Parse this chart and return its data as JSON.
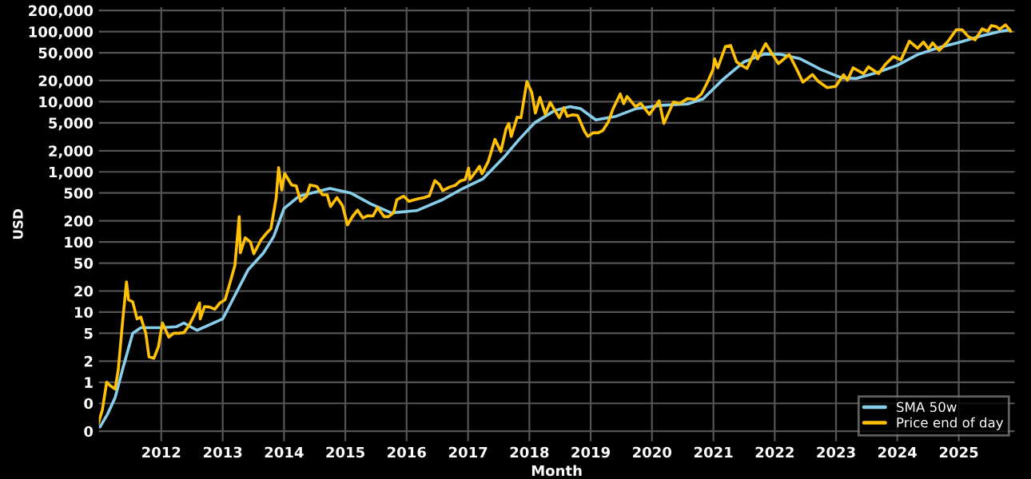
{
  "chart_data": {
    "type": "line",
    "xlabel": "Month",
    "ylabel": "USD",
    "log": "y",
    "grid": true,
    "legend": "bottom right",
    "marker": "none",
    "line_style": "solid",
    "xlim": [
      "2010-12-20",
      "2025-12-05"
    ],
    "xticks": [
      "2012",
      "2013",
      "2014",
      "2015",
      "2016",
      "2017",
      "2018",
      "2019",
      "2020",
      "2021",
      "2022",
      "2023",
      "2024",
      "2025"
    ],
    "ylim": [
      0.14,
      230000
    ],
    "yticks": [
      {
        "value": 0.2,
        "label": "0"
      },
      {
        "value": 0.5,
        "label": "0"
      },
      1,
      2,
      5,
      10,
      20,
      50,
      100,
      200,
      500,
      {
        "value": 1000,
        "label": "1,000"
      },
      {
        "value": 2000,
        "label": "2,000"
      },
      {
        "value": 5000,
        "label": "5,000"
      },
      {
        "value": 10000,
        "label": "10,000"
      },
      {
        "value": 20000,
        "label": "20,000"
      },
      {
        "value": 50000,
        "label": "50,000"
      },
      {
        "value": 100000,
        "label": "100,000"
      },
      {
        "value": 200000,
        "label": "200,000"
      }
    ],
    "series": [
      {
        "name": "SMA 50w",
        "color": "#87ceeb",
        "x": [
          "2011-01-01",
          "2011-02-15",
          "2011-04-01",
          "2011-05-15",
          "2011-07-15",
          "2011-09-01",
          "2012-01-01",
          "2012-04-01",
          "2012-05-15",
          "2012-08-01",
          "2013-01-01",
          "2013-03-01",
          "2013-06-01",
          "2013-09-01",
          "2013-11-01",
          "2014-01-01",
          "2014-04-01",
          "2014-10-01",
          "2015-02-01",
          "2015-06-01",
          "2015-10-01",
          "2016-03-01",
          "2016-08-01",
          "2016-12-01",
          "2017-04-01",
          "2017-08-01",
          "2017-11-01",
          "2018-02-01",
          "2018-06-01",
          "2018-09-01",
          "2018-11-01",
          "2019-02-01",
          "2019-06-01",
          "2019-10-01",
          "2020-03-01",
          "2020-08-01",
          "2020-11-01",
          "2021-03-01",
          "2021-07-01",
          "2021-11-01",
          "2022-02-01",
          "2022-06-01",
          "2022-10-01",
          "2023-02-01",
          "2023-05-01",
          "2023-09-01",
          "2024-01-01",
          "2024-05-01",
          "2024-09-01",
          "2025-01-01",
          "2025-05-01",
          "2025-09-01",
          "2025-11-01"
        ],
        "values": [
          0.23,
          0.35,
          0.6,
          1.5,
          5,
          6,
          6,
          6.2,
          7,
          5.5,
          8,
          15,
          40,
          70,
          120,
          300,
          450,
          580,
          500,
          350,
          260,
          280,
          400,
          580,
          800,
          1600,
          2900,
          5000,
          7500,
          8500,
          8000,
          5500,
          6200,
          8000,
          8900,
          9300,
          11000,
          21000,
          37000,
          48000,
          47500,
          41000,
          29000,
          22000,
          21500,
          26000,
          33000,
          47000,
          59000,
          70000,
          85000,
          100000,
          106000
        ]
      },
      {
        "name": "Price end of day",
        "color": "#ffc107",
        "x": [
          "2010-12-20",
          "2011-01-15",
          "2011-02-10",
          "2011-03-01",
          "2011-04-01",
          "2011-04-20",
          "2011-05-15",
          "2011-06-08",
          "2011-06-20",
          "2011-07-15",
          "2011-08-10",
          "2011-09-01",
          "2011-10-01",
          "2011-10-20",
          "2011-11-18",
          "2011-12-15",
          "2012-01-08",
          "2012-02-15",
          "2012-03-15",
          "2012-04-15",
          "2012-05-15",
          "2012-06-15",
          "2012-07-15",
          "2012-08-16",
          "2012-08-20",
          "2012-09-15",
          "2012-10-15",
          "2012-11-15",
          "2012-12-15",
          "2013-01-15",
          "2013-02-15",
          "2013-03-15",
          "2013-04-09",
          "2013-04-16",
          "2013-05-15",
          "2013-06-15",
          "2013-07-05",
          "2013-08-15",
          "2013-09-15",
          "2013-10-15",
          "2013-11-15",
          "2013-11-30",
          "2013-12-18",
          "2014-01-05",
          "2014-02-15",
          "2014-03-15",
          "2014-04-10",
          "2014-05-15",
          "2014-06-05",
          "2014-07-15",
          "2014-08-18",
          "2014-09-15",
          "2014-10-05",
          "2014-11-12",
          "2014-12-15",
          "2015-01-14",
          "2015-02-15",
          "2015-03-15",
          "2015-04-15",
          "2015-05-15",
          "2015-06-15",
          "2015-07-12",
          "2015-08-20",
          "2015-09-15",
          "2015-10-15",
          "2015-11-04",
          "2015-12-15",
          "2016-01-15",
          "2016-02-15",
          "2016-03-15",
          "2016-04-15",
          "2016-05-15",
          "2016-06-17",
          "2016-07-15",
          "2016-08-02",
          "2016-09-15",
          "2016-10-15",
          "2016-11-15",
          "2016-12-15",
          "2017-01-04",
          "2017-01-12",
          "2017-02-15",
          "2017-03-10",
          "2017-03-25",
          "2017-05-01",
          "2017-06-10",
          "2017-07-15",
          "2017-08-15",
          "2017-09-01",
          "2017-09-15",
          "2017-10-20",
          "2017-11-12",
          "2017-12-17",
          "2018-01-15",
          "2018-02-06",
          "2018-03-05",
          "2018-04-06",
          "2018-05-05",
          "2018-06-28",
          "2018-07-25",
          "2018-08-14",
          "2018-09-15",
          "2018-10-15",
          "2018-11-25",
          "2018-12-15",
          "2019-01-15",
          "2019-02-15",
          "2019-03-15",
          "2019-04-15",
          "2019-05-15",
          "2019-06-26",
          "2019-07-17",
          "2019-08-06",
          "2019-09-25",
          "2019-10-26",
          "2019-12-17",
          "2020-02-13",
          "2020-03-12",
          "2020-05-08",
          "2020-06-15",
          "2020-07-30",
          "2020-09-15",
          "2020-10-21",
          "2020-11-30",
          "2020-12-30",
          "2021-01-08",
          "2021-01-27",
          "2021-03-13",
          "2021-04-13",
          "2021-05-19",
          "2021-06-22",
          "2021-07-20",
          "2021-09-06",
          "2021-09-21",
          "2021-11-08",
          "2021-12-15",
          "2022-01-23",
          "2022-03-28",
          "2022-05-12",
          "2022-06-18",
          "2022-08-14",
          "2022-09-15",
          "2022-11-09",
          "2022-12-30",
          "2023-02-15",
          "2023-03-10",
          "2023-04-13",
          "2023-06-15",
          "2023-07-13",
          "2023-09-11",
          "2023-10-24",
          "2023-12-08",
          "2024-01-23",
          "2024-03-13",
          "2024-05-01",
          "2024-06-05",
          "2024-07-05",
          "2024-07-29",
          "2024-09-06",
          "2024-10-29",
          "2024-12-17",
          "2025-01-21",
          "2025-02-27",
          "2025-04-08",
          "2025-05-21",
          "2025-06-22",
          "2025-07-14",
          "2025-08-15",
          "2025-09-01",
          "2025-10-06",
          "2025-10-25",
          "2025-11-06"
        ],
        "values": [
          0.25,
          0.4,
          1.0,
          0.9,
          0.8,
          1.5,
          7,
          27,
          15,
          14,
          8,
          8.5,
          5,
          2.3,
          2.2,
          3.2,
          7,
          4.4,
          5,
          5,
          5.1,
          6.5,
          9,
          13.5,
          8,
          12,
          11.8,
          11,
          13.5,
          15,
          27,
          47,
          230,
          70,
          115,
          100,
          68,
          105,
          130,
          155,
          420,
          1150,
          550,
          950,
          650,
          630,
          380,
          450,
          650,
          620,
          470,
          470,
          320,
          430,
          330,
          175,
          235,
          285,
          220,
          237,
          235,
          310,
          230,
          230,
          260,
          400,
          450,
          380,
          400,
          415,
          430,
          455,
          750,
          660,
          540,
          610,
          640,
          740,
          780,
          1130,
          780,
          1000,
          1200,
          940,
          1400,
          2900,
          1950,
          4100,
          4900,
          3200,
          6000,
          5900,
          19300,
          13600,
          6900,
          11500,
          6600,
          9800,
          5900,
          8200,
          6200,
          6500,
          6400,
          3800,
          3200,
          3600,
          3600,
          3900,
          5100,
          8000,
          12900,
          9400,
          11900,
          8500,
          9500,
          6600,
          10300,
          4900,
          9900,
          9400,
          11100,
          10800,
          12800,
          19700,
          28900,
          40700,
          30400,
          61200,
          63500,
          37000,
          32500,
          29800,
          52700,
          40600,
          67500,
          48900,
          35000,
          47100,
          29000,
          19000,
          24400,
          19700,
          15900,
          16500,
          24300,
          20200,
          30400,
          25100,
          31400,
          25100,
          34500,
          44000,
          39500,
          73000,
          57800,
          71100,
          56700,
          69000,
          53900,
          72700,
          106100,
          106100,
          84700,
          76300,
          109700,
          100900,
          122000,
          117000,
          108000,
          124800,
          111000,
          101000
        ]
      }
    ]
  }
}
